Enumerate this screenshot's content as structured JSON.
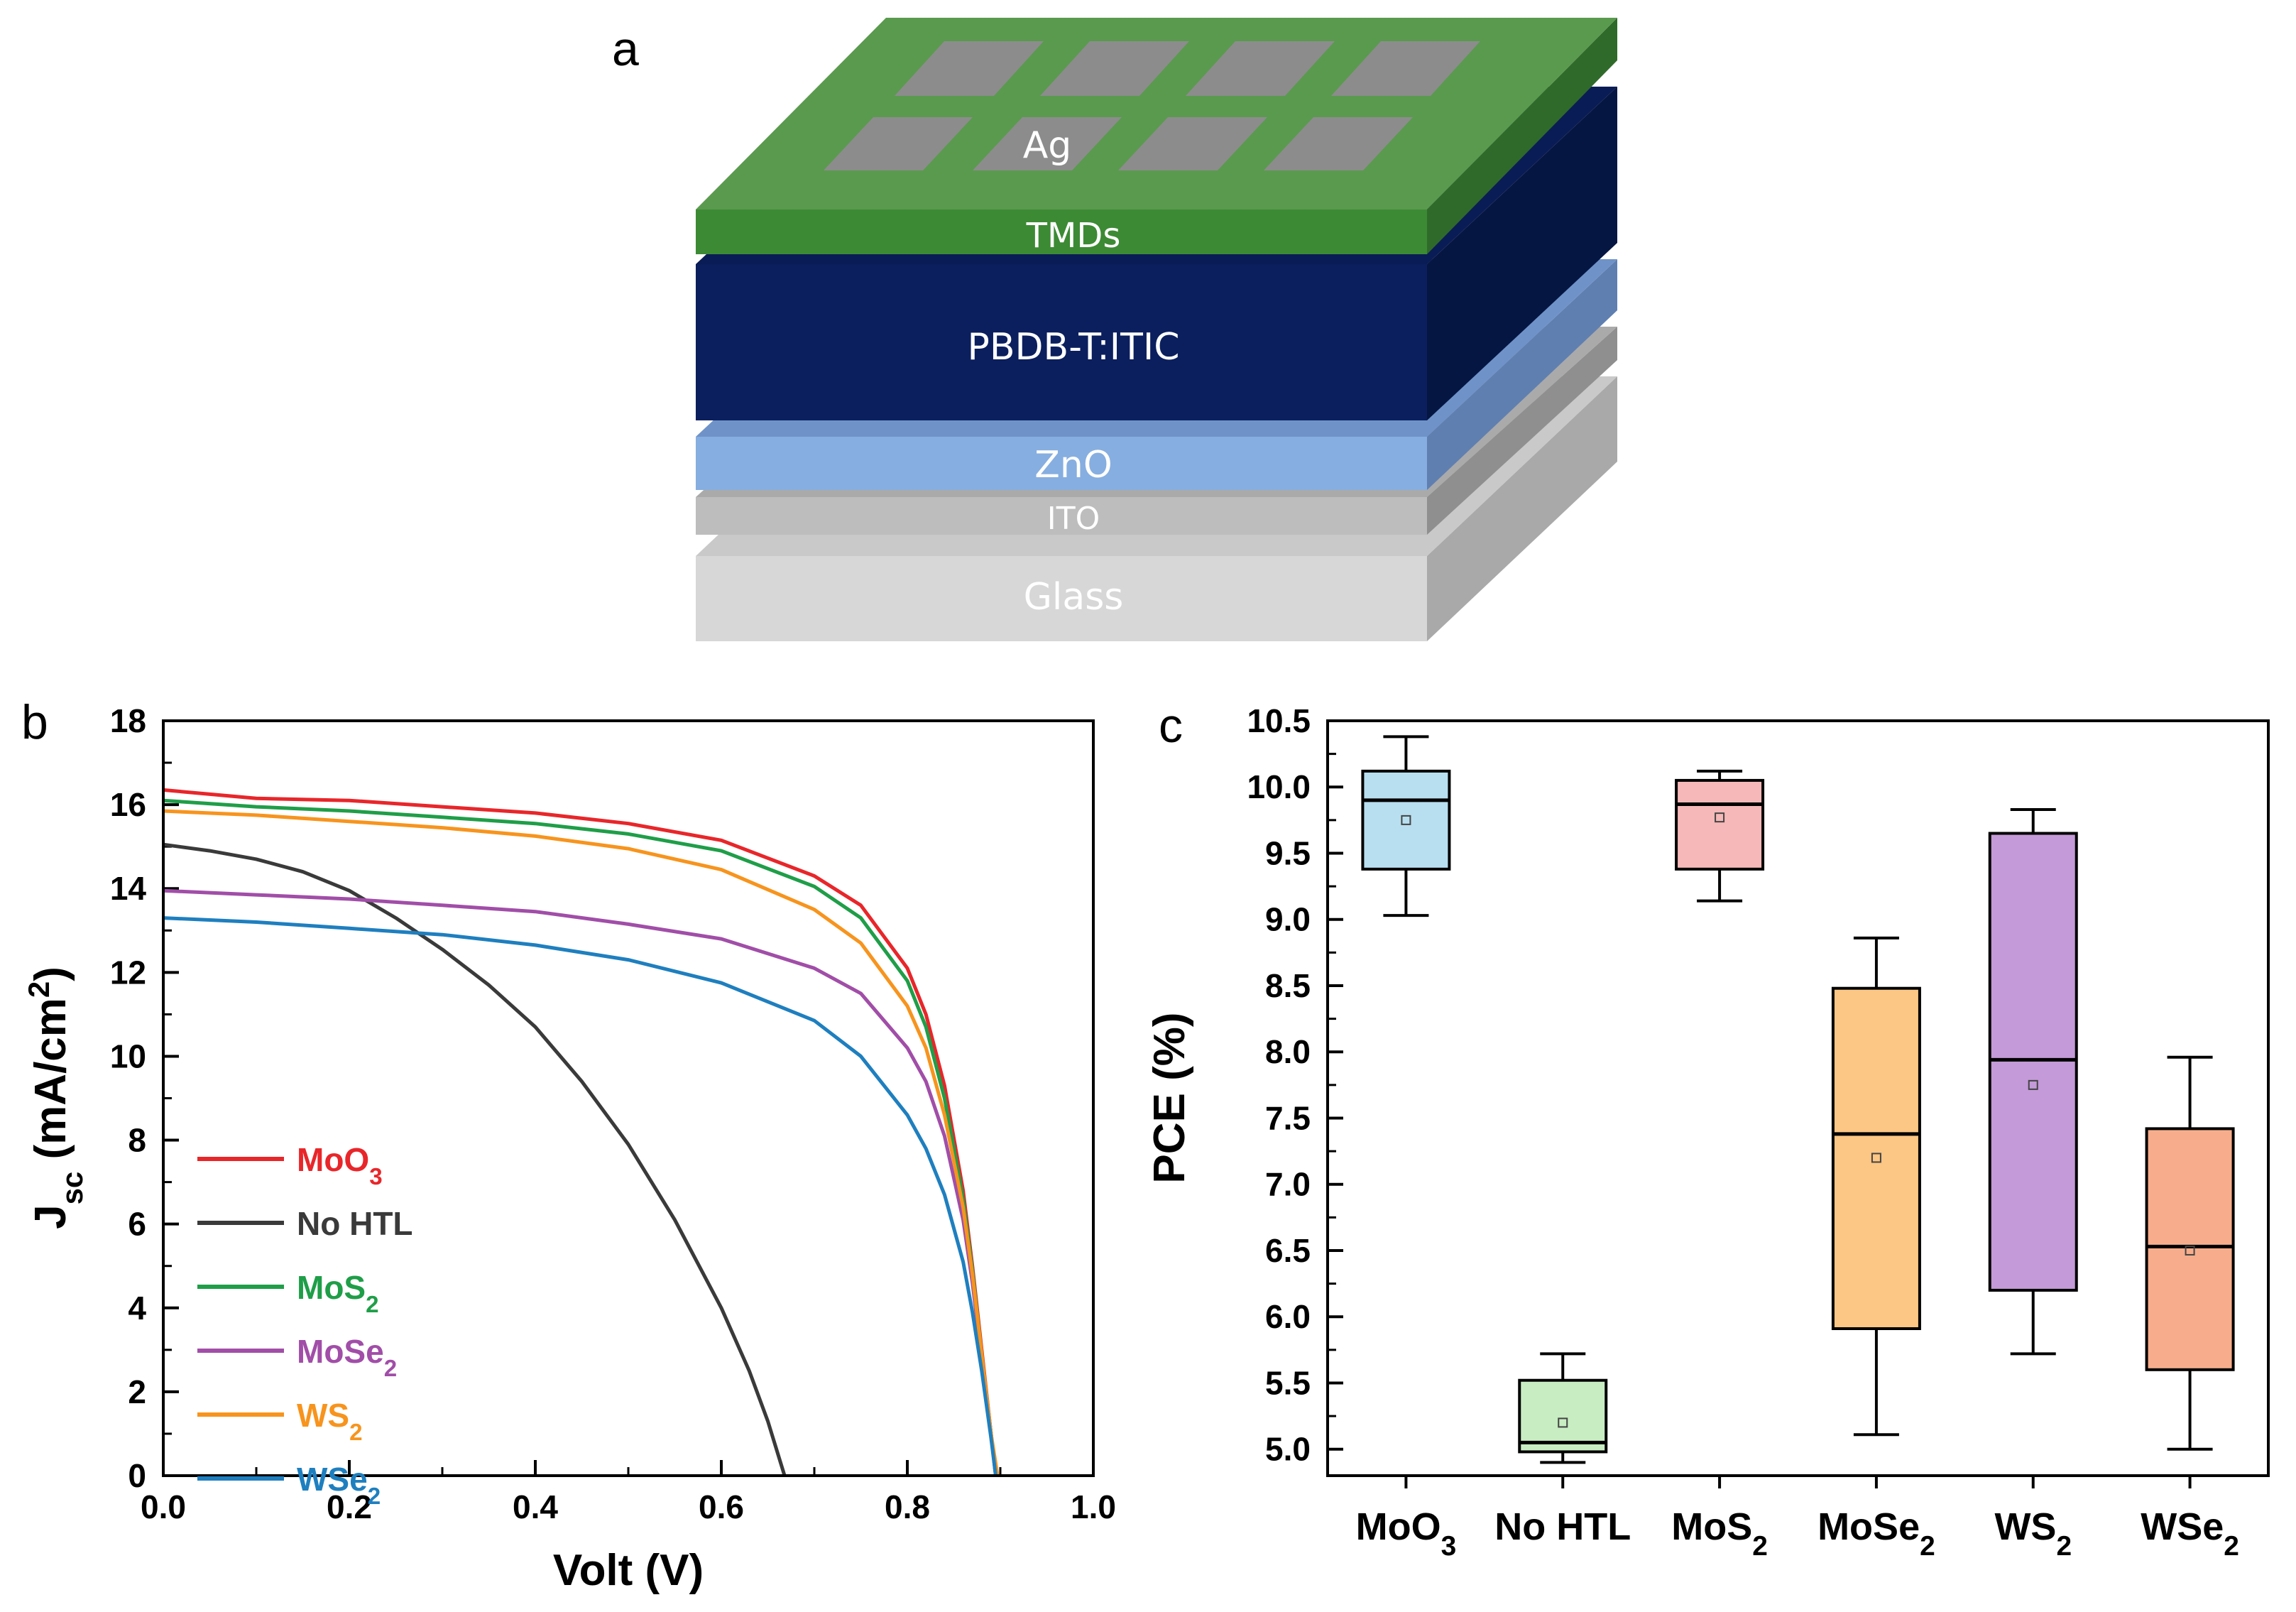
{
  "panel_a": {
    "letter": "a",
    "layers": {
      "ag": "Ag",
      "tmds": "TMDs",
      "active": "PBDB-T:ITIC",
      "zno": "ZnO",
      "ito": "ITO",
      "glass": "Glass"
    },
    "colors": {
      "ag": "#8c8c8c",
      "tmds": "#5a9a4e",
      "active": "#0b1f5e",
      "zno": "#86aee0",
      "ito": "#bdbdbd",
      "glass": "#d7d7d7"
    }
  },
  "chart_data": [
    {
      "type": "line",
      "panel_letter": "b",
      "title": "",
      "xlabel": "Volt (V)",
      "ylabel_main": "J",
      "ylabel_sub": "sc",
      "ylabel_unit": " (mA/cm",
      "ylabel_sup": "2",
      "ylabel_close": ")",
      "xlim": [
        0,
        1.0
      ],
      "ylim": [
        0,
        18
      ],
      "xticks": [
        "0.0",
        "0.2",
        "0.4",
        "0.6",
        "0.8",
        "1.0"
      ],
      "yticks": [
        "0",
        "2",
        "4",
        "6",
        "8",
        "10",
        "12",
        "14",
        "16",
        "18"
      ],
      "legend_position": "bottom-left",
      "series": [
        {
          "name": "MoO",
          "sub": "3",
          "color": "#e8262a",
          "x": [
            0,
            0.1,
            0.2,
            0.3,
            0.4,
            0.5,
            0.6,
            0.7,
            0.75,
            0.8,
            0.82,
            0.84,
            0.86,
            0.87,
            0.88,
            0.89,
            0.895
          ],
          "y": [
            16.35,
            16.15,
            16.1,
            15.95,
            15.8,
            15.55,
            15.15,
            14.3,
            13.6,
            12.1,
            11.0,
            9.3,
            6.8,
            5.0,
            3.0,
            1.0,
            0
          ]
        },
        {
          "name": "No HTL",
          "sub": "",
          "color": "#3a3a3a",
          "x": [
            0,
            0.05,
            0.1,
            0.15,
            0.2,
            0.25,
            0.3,
            0.35,
            0.4,
            0.45,
            0.5,
            0.55,
            0.6,
            0.63,
            0.65,
            0.668
          ],
          "y": [
            15.05,
            14.9,
            14.7,
            14.4,
            13.95,
            13.3,
            12.55,
            11.7,
            10.7,
            9.4,
            7.9,
            6.1,
            4.0,
            2.5,
            1.3,
            0
          ]
        },
        {
          "name": "MoS",
          "sub": "2",
          "color": "#1f9e48",
          "x": [
            0,
            0.1,
            0.2,
            0.3,
            0.4,
            0.5,
            0.6,
            0.7,
            0.75,
            0.8,
            0.82,
            0.84,
            0.86,
            0.87,
            0.88,
            0.89,
            0.895
          ],
          "y": [
            16.1,
            15.95,
            15.85,
            15.7,
            15.55,
            15.3,
            14.9,
            14.05,
            13.3,
            11.8,
            10.7,
            9.0,
            6.6,
            4.9,
            2.9,
            1.0,
            0
          ]
        },
        {
          "name": "MoSe",
          "sub": "2",
          "color": "#a14ea8",
          "x": [
            0,
            0.1,
            0.2,
            0.3,
            0.4,
            0.5,
            0.6,
            0.7,
            0.75,
            0.8,
            0.82,
            0.84,
            0.86,
            0.87,
            0.88,
            0.89,
            0.895
          ],
          "y": [
            13.95,
            13.85,
            13.75,
            13.6,
            13.45,
            13.15,
            12.8,
            12.1,
            11.5,
            10.2,
            9.4,
            8.1,
            6.1,
            4.6,
            2.8,
            1.0,
            0
          ]
        },
        {
          "name": "WS",
          "sub": "2",
          "color": "#f7941d",
          "x": [
            0,
            0.1,
            0.2,
            0.3,
            0.4,
            0.5,
            0.6,
            0.7,
            0.75,
            0.8,
            0.82,
            0.84,
            0.86,
            0.87,
            0.88,
            0.89,
            0.897
          ],
          "y": [
            15.85,
            15.75,
            15.6,
            15.45,
            15.25,
            14.95,
            14.45,
            13.5,
            12.7,
            11.2,
            10.2,
            8.6,
            6.4,
            4.8,
            2.9,
            1.0,
            0
          ]
        },
        {
          "name": "WSe",
          "sub": "2",
          "color": "#1e7fbf",
          "x": [
            0,
            0.1,
            0.2,
            0.3,
            0.4,
            0.5,
            0.6,
            0.7,
            0.75,
            0.8,
            0.82,
            0.84,
            0.86,
            0.87,
            0.88,
            0.89,
            0.895
          ],
          "y": [
            13.3,
            13.2,
            13.05,
            12.9,
            12.65,
            12.3,
            11.75,
            10.85,
            10.0,
            8.6,
            7.8,
            6.7,
            5.1,
            3.9,
            2.5,
            0.9,
            0
          ]
        }
      ]
    },
    {
      "type": "box",
      "panel_letter": "c",
      "title": "",
      "xlabel": "",
      "ylabel": "PCE (%)",
      "ylim": [
        4.8,
        10.5
      ],
      "yticks": [
        "5.0",
        "5.5",
        "6.0",
        "6.5",
        "7.0",
        "7.5",
        "8.0",
        "8.5",
        "9.0",
        "9.5",
        "10.0",
        "10.5"
      ],
      "boxes": [
        {
          "label": "MoO",
          "sub": "3",
          "fill": "#b8dff0",
          "whisker_low": 9.03,
          "q1": 9.38,
          "median": 9.9,
          "q3": 10.12,
          "whisker_high": 10.38,
          "mean": 9.75
        },
        {
          "label": "No HTL",
          "sub": "",
          "fill": "#c8edc2",
          "whisker_low": 4.9,
          "q1": 4.98,
          "median": 5.05,
          "q3": 5.52,
          "whisker_high": 5.72,
          "mean": 5.2
        },
        {
          "label": "MoS",
          "sub": "2",
          "fill": "#f6b8b8",
          "whisker_low": 9.14,
          "q1": 9.38,
          "median": 9.87,
          "q3": 10.05,
          "whisker_high": 10.12,
          "mean": 9.77
        },
        {
          "label": "MoSe",
          "sub": "2",
          "fill": "#fcc684",
          "whisker_low": 5.11,
          "q1": 5.91,
          "median": 7.38,
          "q3": 8.48,
          "whisker_high": 8.86,
          "mean": 7.2
        },
        {
          "label": "WS",
          "sub": "2",
          "fill": "#c49ad8",
          "whisker_low": 5.72,
          "q1": 6.2,
          "median": 7.94,
          "q3": 9.65,
          "whisker_high": 9.83,
          "mean": 7.75
        },
        {
          "label": "WSe",
          "sub": "2",
          "fill": "#f7ad8c",
          "whisker_low": 5.0,
          "q1": 5.6,
          "median": 6.53,
          "q3": 7.42,
          "whisker_high": 7.96,
          "mean": 6.5
        }
      ]
    }
  ]
}
